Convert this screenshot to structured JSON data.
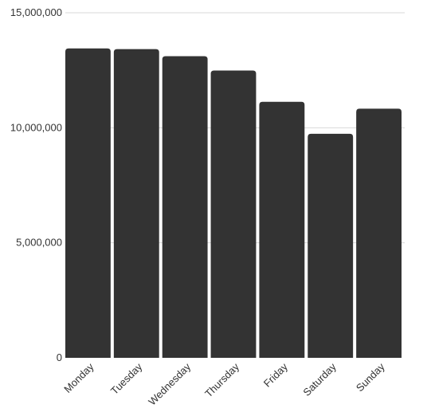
{
  "chart_data": {
    "type": "bar",
    "categories": [
      "Monday",
      "Tuesday",
      "Wednesday",
      "Thursday",
      "Friday",
      "Saturday",
      "Sunday"
    ],
    "values": [
      13450000,
      13420000,
      13110000,
      12490000,
      11130000,
      9740000,
      10830000
    ],
    "title": "",
    "xlabel": "",
    "ylabel": "",
    "ylim": [
      0,
      15000000
    ],
    "yticks": [
      "0",
      "5,000,000",
      "10,000,000",
      "15,000,000"
    ],
    "ytick_values": [
      0,
      5000000,
      10000000,
      15000000
    ],
    "grid": true,
    "legend": "none",
    "bar_color": "#333333",
    "grid_color": "#d9d9d9"
  }
}
